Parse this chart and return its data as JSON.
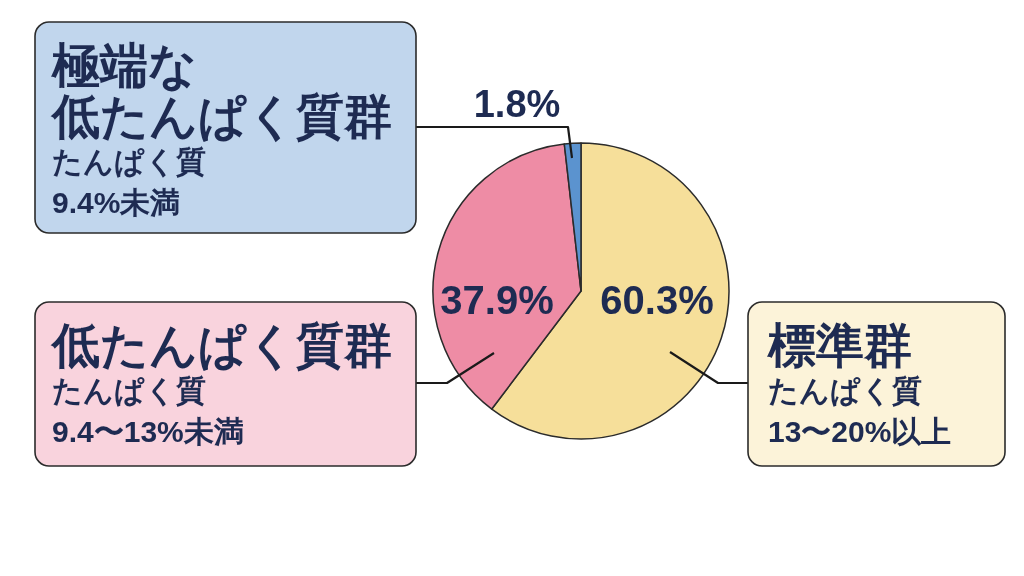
{
  "chart_data": {
    "type": "pie",
    "categories": [
      "標準群",
      "低たんぱく質群",
      "極端な低たんぱく質群"
    ],
    "values": [
      60.3,
      37.9,
      1.8
    ],
    "colors": [
      "#f6df9a",
      "#ee8ca5",
      "#5b93cf"
    ],
    "value_labels": [
      "60.3%",
      "37.9%",
      "1.8%"
    ],
    "annotations": [
      "たんぱく質\n13〜20%以上",
      "たんぱく質\n9.4〜13%未満",
      "たんぱく質\n9.4%未満"
    ]
  }
}
